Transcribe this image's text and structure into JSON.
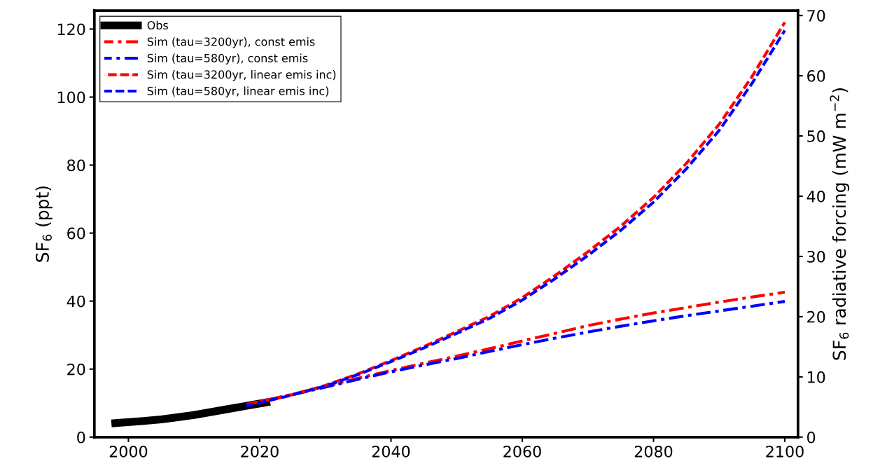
{
  "chart_data": {
    "type": "line",
    "ylabel": "SF$_{6}$ (ppt)",
    "y2label": "SF$_{6}$ radiative forcing (mW m$^{−2}$)",
    "xlim": [
      1994.8,
      2102
    ],
    "xticks": [
      2000,
      2020,
      2040,
      2060,
      2080,
      2100
    ],
    "ylim": [
      0,
      125.4
    ],
    "yticks": [
      0,
      20,
      40,
      60,
      80,
      100,
      120
    ],
    "y2lim": [
      0,
      70.8
    ],
    "y2ticks": [
      0,
      10,
      20,
      30,
      40,
      50,
      60,
      70
    ],
    "legend": "top left",
    "grid": false,
    "series": [
      {
        "name": "Obs",
        "color": "#000000",
        "line_style": "solid",
        "x": [
          1998,
          2002,
          2005,
          2010,
          2015,
          2018,
          2021
        ],
        "values": [
          4.1,
          4.7,
          5.2,
          6.5,
          8.2,
          9.2,
          10.2
        ]
      },
      {
        "name": "Sim (tau=3200yr), const emis",
        "color": "#ff0000",
        "line_style": "dashdot",
        "x": [
          2018,
          2025,
          2030,
          2035,
          2040,
          2045,
          2050,
          2055,
          2060,
          2065,
          2070,
          2075,
          2080,
          2085,
          2090,
          2095,
          2100
        ],
        "values": [
          9.6,
          12.6,
          14.9,
          17.3,
          19.6,
          21.7,
          23.8,
          26.0,
          28.3,
          30.5,
          32.8,
          34.7,
          36.5,
          38.1,
          39.7,
          41.2,
          42.6
        ]
      },
      {
        "name": "Sim (tau=580yr), const emis",
        "color": "#0000ff",
        "line_style": "dashdot",
        "x": [
          2018,
          2025,
          2030,
          2035,
          2040,
          2045,
          2050,
          2055,
          2060,
          2065,
          2070,
          2075,
          2080,
          2085,
          2090,
          2095,
          2100
        ],
        "values": [
          9.2,
          12.5,
          14.7,
          17.0,
          19.2,
          21.2,
          23.1,
          25.2,
          27.2,
          29.1,
          30.9,
          32.6,
          34.2,
          35.7,
          37.1,
          38.5,
          39.9
        ]
      },
      {
        "name": "Sim (tau=3200yr, linear emis inc)",
        "color": "#ff0000",
        "line_style": "dashed",
        "x": [
          2018,
          2025,
          2030,
          2035,
          2040,
          2045,
          2050,
          2055,
          2060,
          2065,
          2070,
          2075,
          2080,
          2085,
          2090,
          2095,
          2100
        ],
        "values": [
          9.6,
          12.5,
          15.2,
          18.6,
          22.5,
          26.6,
          31.0,
          35.5,
          41.0,
          47.5,
          54.5,
          62.0,
          70.5,
          80.5,
          92.0,
          106.0,
          122.0
        ]
      },
      {
        "name": "Sim (tau=580yr, linear emis inc)",
        "color": "#0000ff",
        "line_style": "dashed",
        "x": [
          2018,
          2025,
          2030,
          2035,
          2040,
          2045,
          2050,
          2055,
          2060,
          2065,
          2070,
          2075,
          2080,
          2085,
          2090,
          2095,
          2100
        ],
        "values": [
          9.2,
          12.4,
          15.0,
          18.4,
          22.2,
          26.2,
          30.5,
          34.9,
          40.3,
          46.6,
          53.4,
          60.8,
          69.1,
          78.9,
          90.2,
          104.0,
          119.6
        ]
      }
    ]
  }
}
